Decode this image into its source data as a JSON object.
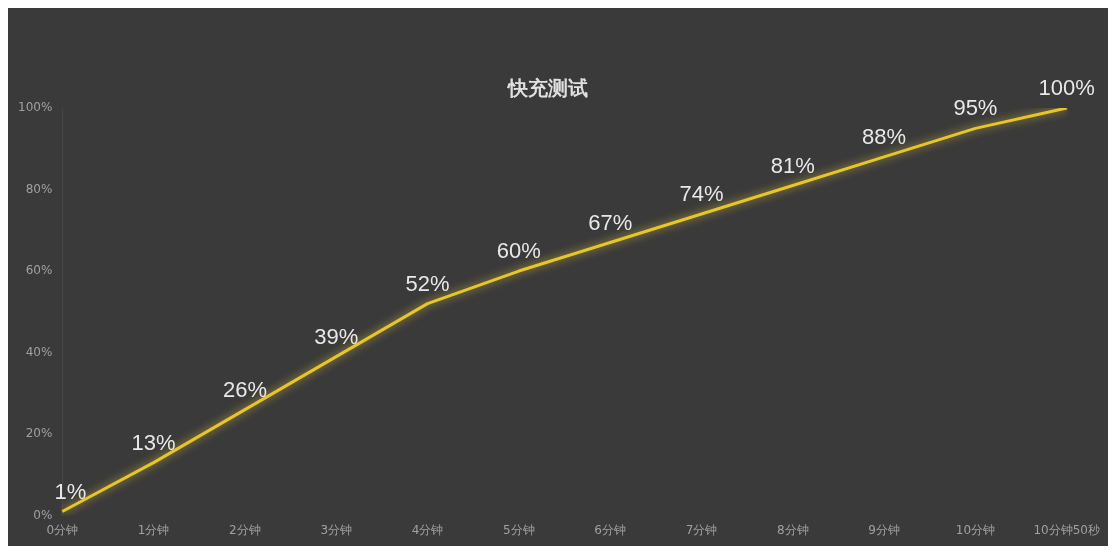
{
  "chart_data": {
    "type": "line",
    "title": "快充测试",
    "categories": [
      "0分钟",
      "1分钟",
      "2分钟",
      "3分钟",
      "4分钟",
      "5分钟",
      "6分钟",
      "7分钟",
      "8分钟",
      "9分钟",
      "10分钟",
      "10分钟50秒"
    ],
    "series": [
      {
        "color": "#e6c62a",
        "values": [
          1,
          13,
          26,
          39,
          52,
          60,
          67,
          74,
          81,
          88,
          95,
          100
        ],
        "value_labels": [
          "1%",
          "13%",
          "26%",
          "39%",
          "52%",
          "60%",
          "67%",
          "74%",
          "81%",
          "88%",
          "95%",
          "100%"
        ]
      }
    ],
    "ylim": [
      0,
      100
    ],
    "yticks": [
      {
        "value": 0,
        "label": "0%"
      },
      {
        "value": 20,
        "label": "20%"
      },
      {
        "value": 40,
        "label": "40%"
      },
      {
        "value": 60,
        "label": "60%"
      },
      {
        "value": 80,
        "label": "80%"
      },
      {
        "value": 100,
        "label": "100%"
      }
    ],
    "grid": false,
    "legend": false,
    "marker": "none",
    "line_style": "solid"
  }
}
